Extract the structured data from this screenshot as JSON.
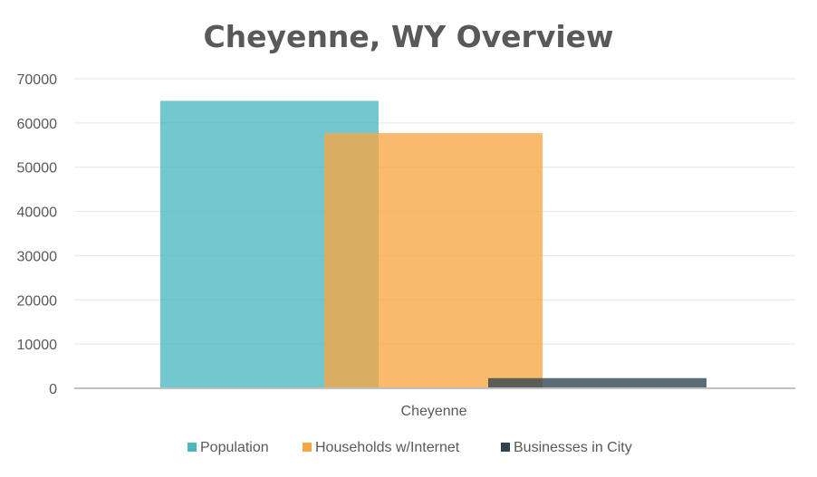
{
  "chart_data": {
    "type": "bar",
    "title": "Cheyenne, WY Overview",
    "categories": [
      "Cheyenne"
    ],
    "series": [
      {
        "name": "Population",
        "values": [
          65000
        ],
        "color": "#4BB8C1"
      },
      {
        "name": "Households w/Internet",
        "values": [
          57700
        ],
        "color": "#F7A742"
      },
      {
        "name": "Businesses in City",
        "values": [
          2300
        ],
        "color": "#2E4250"
      }
    ],
    "ylim": [
      0,
      70000
    ],
    "yticks": [
      0,
      10000,
      20000,
      30000,
      40000,
      50000,
      60000,
      70000
    ],
    "grid": true,
    "legend": "bottom",
    "xlabel": "",
    "ylabel": ""
  }
}
